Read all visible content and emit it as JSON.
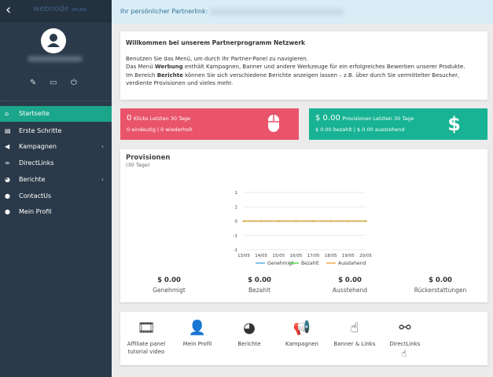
{
  "sidebar": {
    "back_icon": "chevron-left-icon",
    "logo": "webnode",
    "logo_sub": "AFFILIATE",
    "tools": [
      "pencil-icon",
      "monitor-icon",
      "power-icon"
    ],
    "items": [
      {
        "label": "Startseite",
        "icon": "home-icon",
        "active": true
      },
      {
        "label": "Erste Schritte",
        "icon": "book-icon"
      },
      {
        "label": "Kampagnen",
        "icon": "bullhorn-icon",
        "submenu": true
      },
      {
        "label": "DirectLinks",
        "icon": "link-icon"
      },
      {
        "label": "Berichte",
        "icon": "pie-icon",
        "submenu": true
      },
      {
        "label": "ContactUs",
        "icon": "globe-icon"
      },
      {
        "label": "Mein Profil",
        "icon": "user-icon"
      }
    ]
  },
  "partner_link": {
    "label": "Ihr persönlicher Partnerlink:"
  },
  "welcome": {
    "title": "Willkommen bei unserem Partnerprogramm Netzwerk",
    "line1": "Benutzen Sie das Menü, um durch Ihr Partner-Panel zu navigieren.",
    "line2_a": "Das Menü ",
    "line2_b": "Werbung",
    "line2_c": " enthält Kampagnen, Banner und andere Werkzeuge für ein erfolgreiches Bewerben unserer Produkte.",
    "line3_a": "Im Bereich ",
    "line3_b": "Berichte",
    "line3_c": " können Sie sich verschiedene Berichte anzeigen lassen – z.B. über durch Sie vermittelter Besucher, verdiente Provisionen und vieles mehr."
  },
  "clicks": {
    "value": "0",
    "label": "Klicks Letzten 30 Tage",
    "sub": "0 eindeutig | 0 wiederholt",
    "color": "#e9546b"
  },
  "commissions": {
    "value": "$ 0.00",
    "label": "Provisionen Letzten 30 Tage",
    "sub": "$ 0.00 bezahlt | $ 0.00 ausstehend",
    "color": "#17b394"
  },
  "chart_data": {
    "type": "line",
    "title": "Provisionen",
    "subtitle": "(30 Tage)",
    "x": [
      "13/05",
      "14/05",
      "15/05",
      "16/05",
      "17/05",
      "18/05",
      "19/05",
      "20/05"
    ],
    "yticks": [
      "1",
      "1",
      "0",
      "-1",
      "-1"
    ],
    "ylim": [
      -1,
      1
    ],
    "grid": true,
    "legend": "bottom",
    "series": [
      {
        "name": "Genehmigt",
        "color": "#5dade2",
        "values": [
          0,
          0,
          0,
          0,
          0,
          0,
          0,
          0
        ]
      },
      {
        "name": "Bezahlt",
        "color": "#5cd65c",
        "values": [
          0,
          0,
          0,
          0,
          0,
          0,
          0,
          0
        ]
      },
      {
        "name": "Ausstehend",
        "color": "#f0ad4e",
        "values": [
          0,
          0,
          0,
          0,
          0,
          0,
          0,
          0
        ]
      }
    ]
  },
  "totals": [
    {
      "value": "$ 0.00",
      "label": "Genehmigt"
    },
    {
      "value": "$ 0.00",
      "label": "Bezahlt"
    },
    {
      "value": "$ 0.00",
      "label": "Ausstehend"
    },
    {
      "value": "$ 0.00",
      "label": "Rückerstattungen"
    }
  ],
  "shortcuts": [
    {
      "label": "Affiliate panel tutorial video",
      "icon": "video-icon"
    },
    {
      "label": "Mein Profil",
      "icon": "user-icon"
    },
    {
      "label": "Berichte",
      "icon": "pie-chart-icon"
    },
    {
      "label": "Kampagnen",
      "icon": "megaphone-icon"
    },
    {
      "label": "Banner & Links",
      "icon": "pointer-hand-icon"
    },
    {
      "label": "DirectLinks",
      "icon": "link-icon"
    }
  ]
}
